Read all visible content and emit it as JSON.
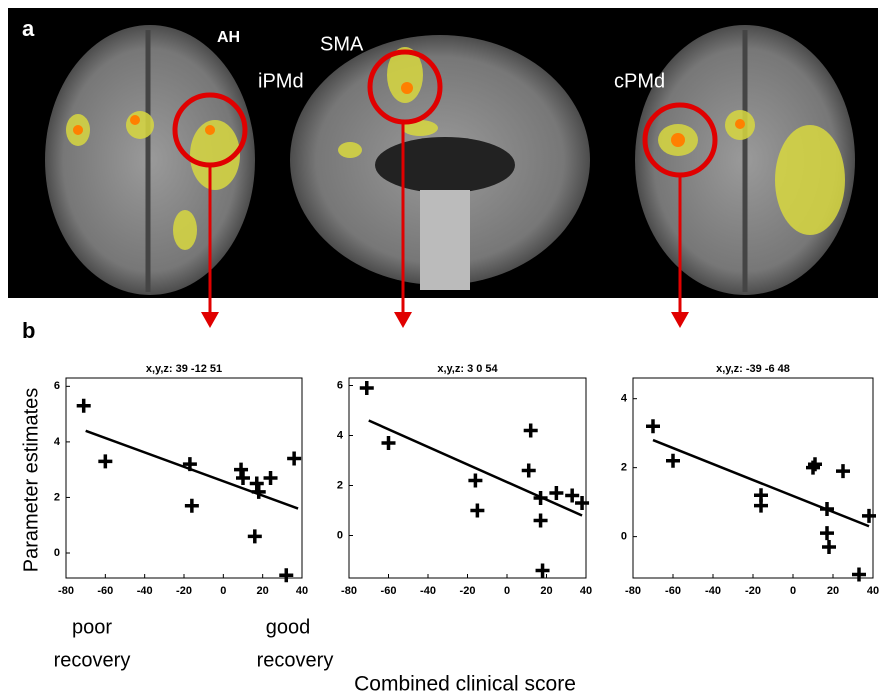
{
  "panel_labels": [
    "a",
    "b"
  ],
  "image_labels": [
    "AH",
    "SMA",
    "iPMd",
    "cPMd"
  ],
  "ylabel": "Parameter estimates",
  "xlabel": "Combined clinical score",
  "x_annotations": [
    [
      "poor",
      "recovery"
    ],
    [
      "good",
      "recovery"
    ]
  ],
  "chart_data": [
    {
      "type": "scatter",
      "title": "x,y,z: 39 -12 51",
      "x": [
        -71,
        -60,
        -17,
        -16,
        9,
        10,
        17,
        18,
        16,
        24,
        36,
        32
      ],
      "values": [
        5.3,
        3.3,
        3.2,
        1.7,
        3.0,
        2.7,
        2.5,
        2.2,
        0.6,
        2.7,
        3.4,
        -0.8
      ],
      "fit": {
        "x": [
          -70,
          38
        ],
        "y": [
          4.4,
          1.6
        ]
      },
      "xlim": [
        -80,
        40
      ],
      "ylim": [
        -0.9,
        6.3
      ],
      "xticks": [
        -80,
        -60,
        -40,
        -20,
        0,
        20,
        40
      ],
      "yticks": [
        0,
        2,
        4,
        6
      ]
    },
    {
      "type": "scatter",
      "title": "x,y,z: 3 0 54",
      "x": [
        -71,
        -60,
        -16,
        -15,
        12,
        11,
        17,
        17,
        18,
        25,
        33,
        38
      ],
      "values": [
        5.9,
        3.7,
        2.2,
        1.0,
        4.2,
        2.6,
        1.5,
        0.6,
        -1.4,
        1.7,
        1.6,
        1.3
      ],
      "fit": {
        "x": [
          -70,
          38
        ],
        "y": [
          4.6,
          0.8
        ]
      },
      "xlim": [
        -80,
        40
      ],
      "ylim": [
        -1.7,
        6.3
      ],
      "xticks": [
        -80,
        -60,
        -40,
        -20,
        0,
        20,
        40
      ],
      "yticks": [
        0,
        2,
        4,
        6
      ]
    },
    {
      "type": "scatter",
      "title": "x,y,z: -39 -6 48",
      "x": [
        -70,
        -60,
        -16,
        -16,
        10,
        11,
        17,
        17,
        18,
        25,
        33,
        38
      ],
      "values": [
        3.2,
        2.2,
        1.2,
        0.9,
        2.0,
        2.1,
        0.8,
        0.1,
        -0.3,
        1.9,
        -1.1,
        0.6
      ],
      "fit": {
        "x": [
          -70,
          38
        ],
        "y": [
          2.8,
          0.3
        ]
      },
      "xlim": [
        -80,
        40
      ],
      "ylim": [
        -1.2,
        4.6
      ],
      "xticks": [
        -80,
        -60,
        -40,
        -20,
        0,
        20,
        40
      ],
      "yticks": [
        0,
        2,
        4
      ]
    }
  ]
}
